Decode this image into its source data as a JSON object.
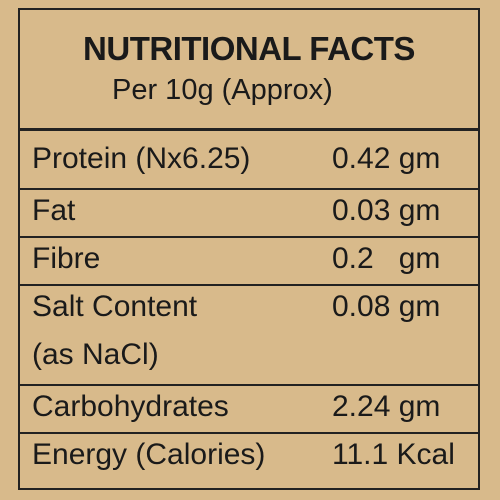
{
  "header": {
    "title": "NUTRITIONAL FACTS",
    "subtitle": "Per 10g (Approx)"
  },
  "table": {
    "rows": [
      {
        "nutrient": [
          "Protein (Nx6.25)"
        ],
        "amount": "0.42 gm"
      },
      {
        "nutrient": [
          "Fat"
        ],
        "amount": "0.03 gm"
      },
      {
        "nutrient": [
          "Fibre"
        ],
        "amount": "0.2   gm"
      },
      {
        "nutrient": [
          "Salt Content",
          "(as NaCl)"
        ],
        "amount": "0.08 gm"
      },
      {
        "nutrient": [
          "Carbohydrates"
        ],
        "amount": "2.24 gm"
      },
      {
        "nutrient": [
          "Energy (Calories)"
        ],
        "amount": "11.1 Kcal"
      }
    ]
  }
}
